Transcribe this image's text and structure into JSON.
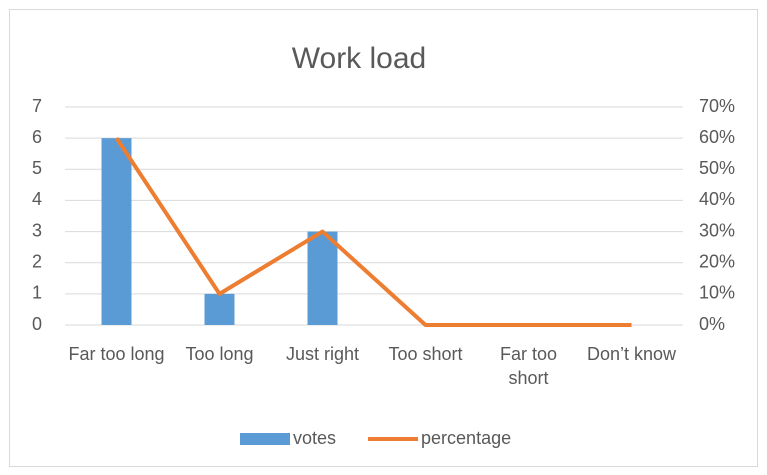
{
  "chart_data": {
    "type": "bar",
    "title": "Work load",
    "categories": [
      "Far too long",
      "Too long",
      "Just right",
      "Too short",
      "Far too short",
      "Don’t know"
    ],
    "series": [
      {
        "name": "votes",
        "type": "bar",
        "color": "#5b9bd5",
        "values": [
          6,
          1,
          3,
          0,
          0,
          0
        ]
      },
      {
        "name": "percentage",
        "type": "line",
        "color": "#ed7d31",
        "axis": "y2",
        "values": [
          60,
          10,
          30,
          0,
          0,
          0
        ]
      }
    ],
    "ylim": [
      0,
      7
    ],
    "yticks": [
      0,
      1,
      2,
      3,
      4,
      5,
      6,
      7
    ],
    "y2lim": [
      0,
      70
    ],
    "y2ticks": [
      {
        "value": 0,
        "label": "0%"
      },
      {
        "value": 10,
        "label": "10%"
      },
      {
        "value": 20,
        "label": "20%"
      },
      {
        "value": 30,
        "label": "30%"
      },
      {
        "value": 40,
        "label": "40%"
      },
      {
        "value": 50,
        "label": "50%"
      },
      {
        "value": 60,
        "label": "60%"
      },
      {
        "value": 70,
        "label": "70%"
      }
    ],
    "grid": true,
    "legend": "bottom"
  }
}
